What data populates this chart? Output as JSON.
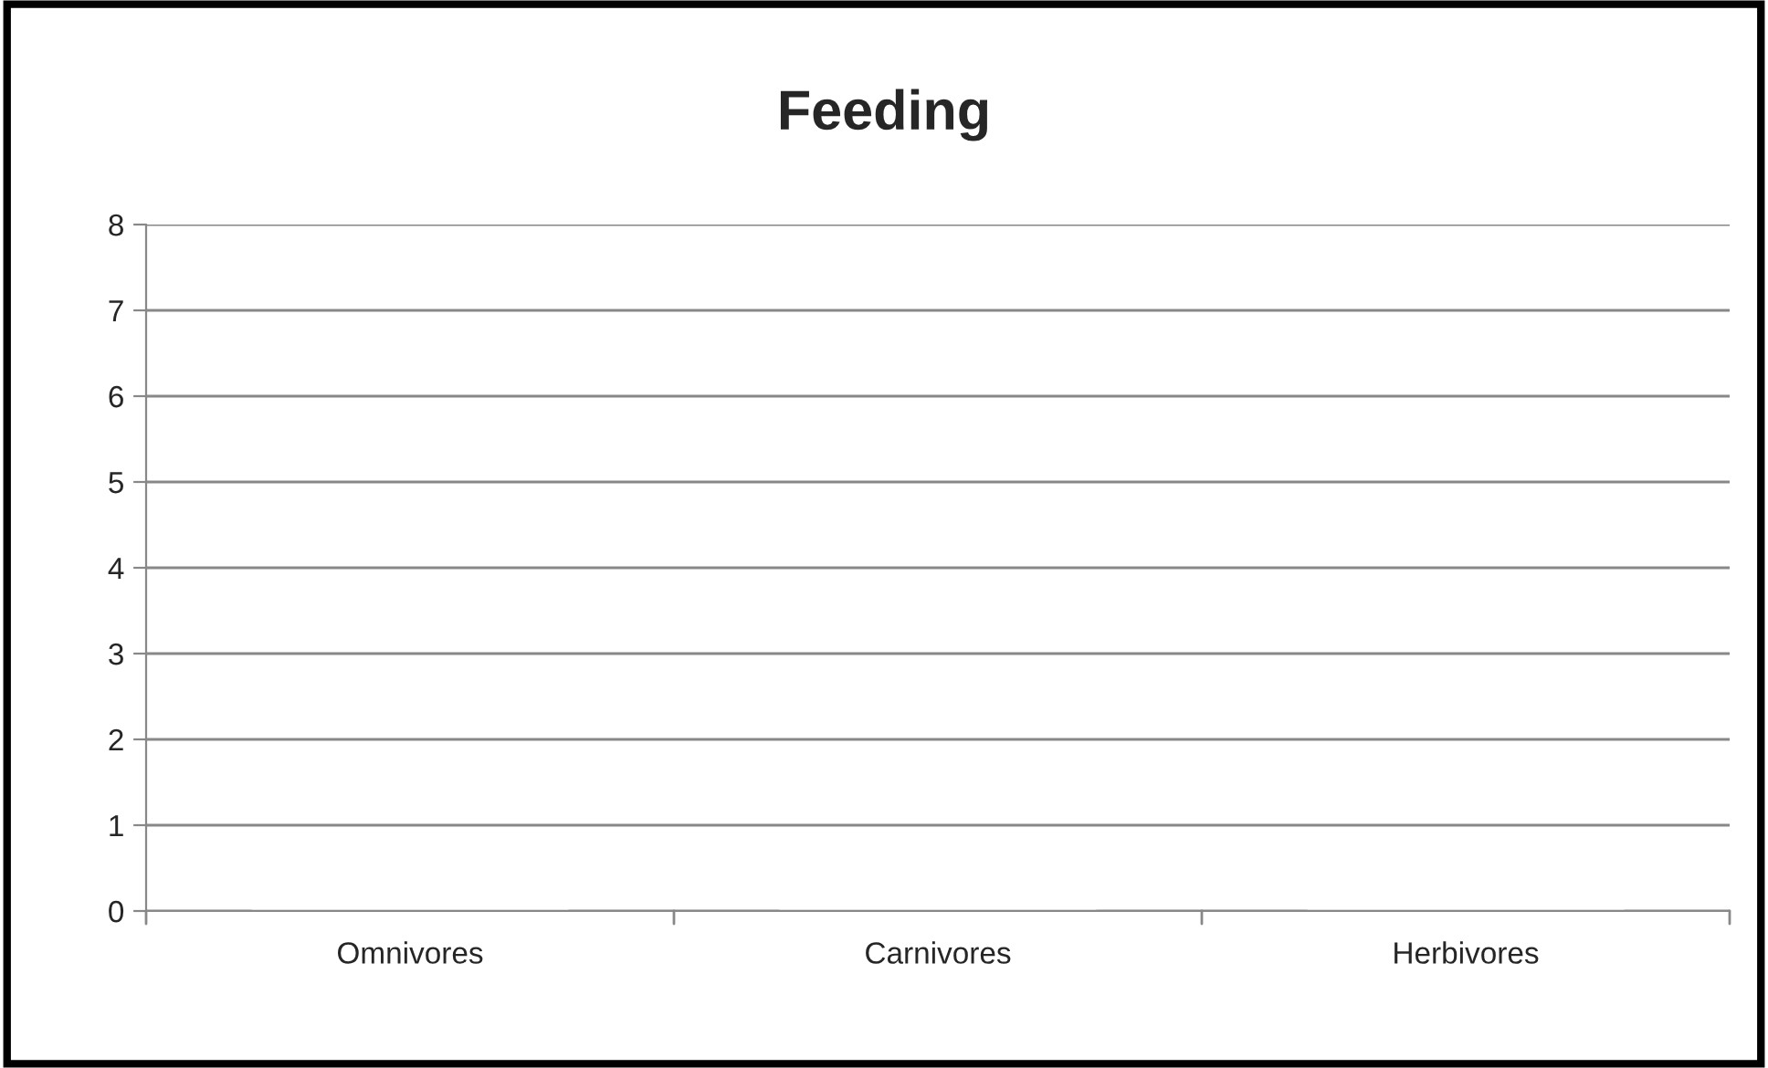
{
  "chart_data": {
    "type": "bar",
    "title": "Feeding",
    "categories": [
      "Omnivores",
      "Carnivores",
      "Herbivores"
    ],
    "values": [
      0,
      0,
      0
    ],
    "ylim": [
      0,
      8
    ],
    "yticks": [
      0,
      1,
      2,
      3,
      4,
      5,
      6,
      7,
      8
    ],
    "grid": "y",
    "legend": false
  }
}
